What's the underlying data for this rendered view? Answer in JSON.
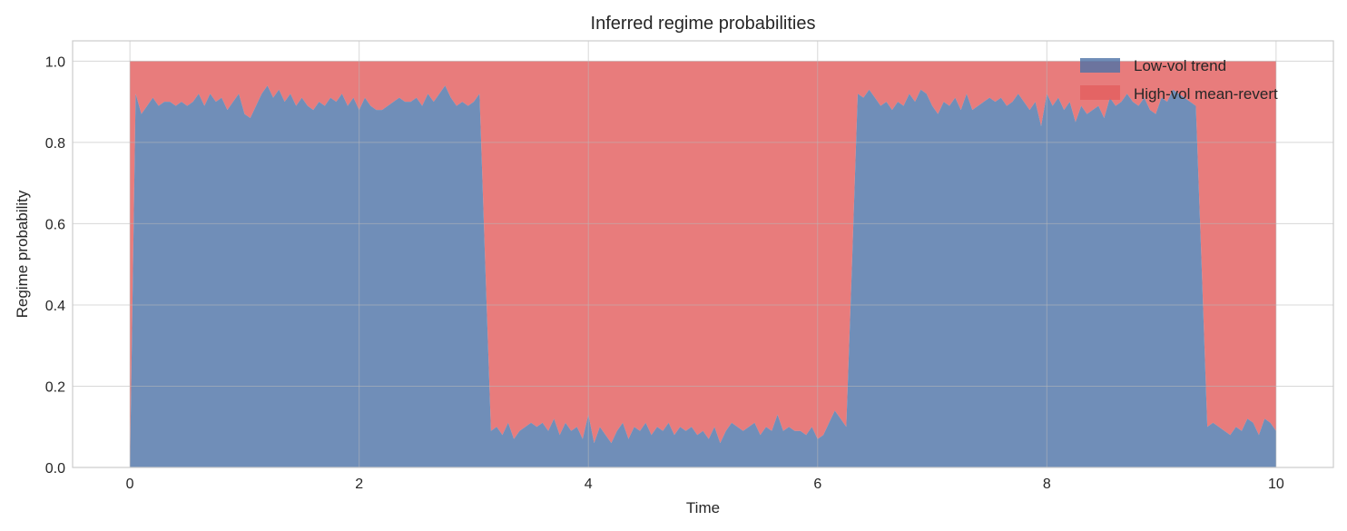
{
  "chart_data": {
    "type": "area",
    "stacked": true,
    "title": "Inferred regime probabilities",
    "xlabel": "Time",
    "ylabel": "Regime probability",
    "xlim": [
      -0.5,
      10.5
    ],
    "ylim": [
      0,
      1.05
    ],
    "xticks": [
      0,
      2,
      4,
      6,
      8,
      10
    ],
    "xtick_labels": [
      "0",
      "2",
      "4",
      "6",
      "8",
      "10"
    ],
    "yticks": [
      0.0,
      0.2,
      0.4,
      0.6,
      0.8,
      1.0
    ],
    "ytick_labels": [
      "0.0",
      "0.2",
      "0.4",
      "0.6",
      "0.8",
      "1.0"
    ],
    "grid": true,
    "legend_position": "top-right",
    "series": [
      {
        "name": "Low-vol trend",
        "color": "#4c72a6",
        "points": [
          [
            0,
            0.0
          ],
          [
            0.05,
            0.92
          ],
          [
            0.1,
            0.87
          ],
          [
            0.15,
            0.89
          ],
          [
            0.2,
            0.91
          ],
          [
            0.25,
            0.89
          ],
          [
            0.3,
            0.9
          ],
          [
            0.35,
            0.9
          ],
          [
            0.4,
            0.89
          ],
          [
            0.45,
            0.9
          ],
          [
            0.5,
            0.89
          ],
          [
            0.55,
            0.9
          ],
          [
            0.6,
            0.92
          ],
          [
            0.65,
            0.89
          ],
          [
            0.7,
            0.92
          ],
          [
            0.75,
            0.9
          ],
          [
            0.8,
            0.91
          ],
          [
            0.85,
            0.88
          ],
          [
            0.9,
            0.9
          ],
          [
            0.95,
            0.92
          ],
          [
            1.0,
            0.87
          ],
          [
            1.05,
            0.86
          ],
          [
            1.1,
            0.89
          ],
          [
            1.15,
            0.92
          ],
          [
            1.2,
            0.94
          ],
          [
            1.25,
            0.91
          ],
          [
            1.3,
            0.93
          ],
          [
            1.35,
            0.9
          ],
          [
            1.4,
            0.92
          ],
          [
            1.45,
            0.89
          ],
          [
            1.5,
            0.91
          ],
          [
            1.55,
            0.89
          ],
          [
            1.6,
            0.88
          ],
          [
            1.65,
            0.9
          ],
          [
            1.7,
            0.89
          ],
          [
            1.75,
            0.91
          ],
          [
            1.8,
            0.9
          ],
          [
            1.85,
            0.92
          ],
          [
            1.9,
            0.89
          ],
          [
            1.95,
            0.91
          ],
          [
            2.0,
            0.88
          ],
          [
            2.05,
            0.91
          ],
          [
            2.1,
            0.89
          ],
          [
            2.15,
            0.88
          ],
          [
            2.2,
            0.88
          ],
          [
            2.25,
            0.89
          ],
          [
            2.3,
            0.9
          ],
          [
            2.35,
            0.91
          ],
          [
            2.4,
            0.9
          ],
          [
            2.45,
            0.9
          ],
          [
            2.5,
            0.91
          ],
          [
            2.55,
            0.89
          ],
          [
            2.6,
            0.92
          ],
          [
            2.65,
            0.9
          ],
          [
            2.7,
            0.92
          ],
          [
            2.75,
            0.94
          ],
          [
            2.8,
            0.91
          ],
          [
            2.85,
            0.89
          ],
          [
            2.9,
            0.9
          ],
          [
            2.95,
            0.89
          ],
          [
            3.0,
            0.9
          ],
          [
            3.05,
            0.92
          ],
          [
            3.1,
            0.5
          ],
          [
            3.15,
            0.09
          ],
          [
            3.2,
            0.1
          ],
          [
            3.25,
            0.08
          ],
          [
            3.3,
            0.11
          ],
          [
            3.35,
            0.07
          ],
          [
            3.4,
            0.09
          ],
          [
            3.45,
            0.1
          ],
          [
            3.5,
            0.11
          ],
          [
            3.55,
            0.1
          ],
          [
            3.6,
            0.11
          ],
          [
            3.65,
            0.09
          ],
          [
            3.7,
            0.12
          ],
          [
            3.75,
            0.08
          ],
          [
            3.8,
            0.11
          ],
          [
            3.85,
            0.09
          ],
          [
            3.9,
            0.1
          ],
          [
            3.95,
            0.07
          ],
          [
            4.0,
            0.13
          ],
          [
            4.05,
            0.06
          ],
          [
            4.1,
            0.1
          ],
          [
            4.15,
            0.08
          ],
          [
            4.2,
            0.06
          ],
          [
            4.25,
            0.09
          ],
          [
            4.3,
            0.11
          ],
          [
            4.35,
            0.07
          ],
          [
            4.4,
            0.1
          ],
          [
            4.45,
            0.09
          ],
          [
            4.5,
            0.11
          ],
          [
            4.55,
            0.08
          ],
          [
            4.6,
            0.1
          ],
          [
            4.65,
            0.09
          ],
          [
            4.7,
            0.11
          ],
          [
            4.75,
            0.08
          ],
          [
            4.8,
            0.1
          ],
          [
            4.85,
            0.09
          ],
          [
            4.9,
            0.1
          ],
          [
            4.95,
            0.08
          ],
          [
            5.0,
            0.09
          ],
          [
            5.05,
            0.07
          ],
          [
            5.1,
            0.1
          ],
          [
            5.15,
            0.06
          ],
          [
            5.2,
            0.09
          ],
          [
            5.25,
            0.11
          ],
          [
            5.3,
            0.1
          ],
          [
            5.35,
            0.09
          ],
          [
            5.4,
            0.1
          ],
          [
            5.45,
            0.11
          ],
          [
            5.5,
            0.08
          ],
          [
            5.55,
            0.1
          ],
          [
            5.6,
            0.09
          ],
          [
            5.65,
            0.13
          ],
          [
            5.7,
            0.09
          ],
          [
            5.75,
            0.1
          ],
          [
            5.8,
            0.09
          ],
          [
            5.85,
            0.09
          ],
          [
            5.9,
            0.08
          ],
          [
            5.95,
            0.1
          ],
          [
            6.0,
            0.07
          ],
          [
            6.05,
            0.08
          ],
          [
            6.1,
            0.11
          ],
          [
            6.15,
            0.14
          ],
          [
            6.2,
            0.12
          ],
          [
            6.25,
            0.1
          ],
          [
            6.3,
            0.5
          ],
          [
            6.35,
            0.92
          ],
          [
            6.4,
            0.91
          ],
          [
            6.45,
            0.93
          ],
          [
            6.5,
            0.91
          ],
          [
            6.55,
            0.89
          ],
          [
            6.6,
            0.9
          ],
          [
            6.65,
            0.88
          ],
          [
            6.7,
            0.9
          ],
          [
            6.75,
            0.89
          ],
          [
            6.8,
            0.92
          ],
          [
            6.85,
            0.9
          ],
          [
            6.9,
            0.93
          ],
          [
            6.95,
            0.92
          ],
          [
            7.0,
            0.89
          ],
          [
            7.05,
            0.87
          ],
          [
            7.1,
            0.9
          ],
          [
            7.15,
            0.89
          ],
          [
            7.2,
            0.91
          ],
          [
            7.25,
            0.88
          ],
          [
            7.3,
            0.92
          ],
          [
            7.35,
            0.88
          ],
          [
            7.4,
            0.89
          ],
          [
            7.45,
            0.9
          ],
          [
            7.5,
            0.91
          ],
          [
            7.55,
            0.9
          ],
          [
            7.6,
            0.91
          ],
          [
            7.65,
            0.89
          ],
          [
            7.7,
            0.9
          ],
          [
            7.75,
            0.92
          ],
          [
            7.8,
            0.9
          ],
          [
            7.85,
            0.88
          ],
          [
            7.9,
            0.9
          ],
          [
            7.95,
            0.84
          ],
          [
            8.0,
            0.92
          ],
          [
            8.05,
            0.89
          ],
          [
            8.1,
            0.91
          ],
          [
            8.15,
            0.88
          ],
          [
            8.2,
            0.9
          ],
          [
            8.25,
            0.85
          ],
          [
            8.3,
            0.89
          ],
          [
            8.35,
            0.87
          ],
          [
            8.4,
            0.88
          ],
          [
            8.45,
            0.89
          ],
          [
            8.5,
            0.86
          ],
          [
            8.55,
            0.91
          ],
          [
            8.6,
            0.89
          ],
          [
            8.65,
            0.9
          ],
          [
            8.7,
            0.92
          ],
          [
            8.75,
            0.9
          ],
          [
            8.8,
            0.89
          ],
          [
            8.85,
            0.91
          ],
          [
            8.9,
            0.88
          ],
          [
            8.95,
            0.87
          ],
          [
            9.0,
            0.91
          ],
          [
            9.05,
            0.9
          ],
          [
            9.1,
            0.93
          ],
          [
            9.15,
            0.92
          ],
          [
            9.2,
            0.91
          ],
          [
            9.25,
            0.9
          ],
          [
            9.3,
            0.89
          ],
          [
            9.35,
            0.5
          ],
          [
            9.4,
            0.1
          ],
          [
            9.45,
            0.11
          ],
          [
            9.5,
            0.1
          ],
          [
            9.55,
            0.09
          ],
          [
            9.6,
            0.08
          ],
          [
            9.65,
            0.1
          ],
          [
            9.7,
            0.09
          ],
          [
            9.75,
            0.12
          ],
          [
            9.8,
            0.11
          ],
          [
            9.85,
            0.08
          ],
          [
            9.9,
            0.12
          ],
          [
            9.95,
            0.11
          ],
          [
            10.0,
            0.09
          ]
        ]
      },
      {
        "name": "High-vol mean-revert",
        "color": "#e35f5f",
        "stacks_to": 1.0
      }
    ]
  }
}
